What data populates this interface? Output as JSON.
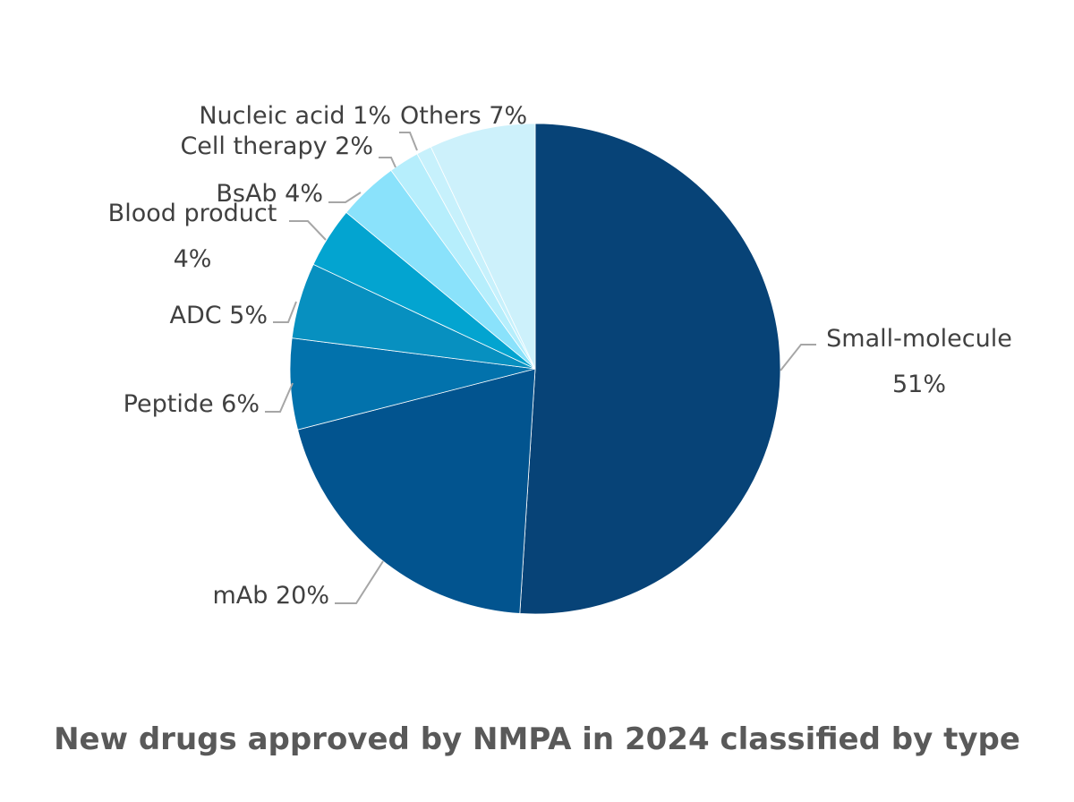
{
  "chart_data": {
    "type": "pie",
    "title": "New drugs approved by NMPA in 2024 classified by type",
    "start_angle_deg": 0,
    "direction": "clockwise",
    "slices": [
      {
        "name": "Small-molecule",
        "value": 51,
        "label_line1": "Small-molecule",
        "label_line2": "51%",
        "color": "#074377"
      },
      {
        "name": "mAb",
        "value": 20,
        "label_line1": "mAb 20%",
        "label_line2": "",
        "color": "#02548f"
      },
      {
        "name": "Peptide",
        "value": 6,
        "label_line1": "Peptide 6%",
        "label_line2": "",
        "color": "#0272ac"
      },
      {
        "name": "ADC",
        "value": 5,
        "label_line1": "ADC 5%",
        "label_line2": "",
        "color": "#0790c0"
      },
      {
        "name": "Blood product",
        "value": 4,
        "label_line1": "Blood product",
        "label_line2": "4%",
        "color": "#03a4d0"
      },
      {
        "name": "BsAb",
        "value": 4,
        "label_line1": "BsAb 4%",
        "label_line2": "",
        "color": "#8ae2fb"
      },
      {
        "name": "Cell therapy",
        "value": 2,
        "label_line1": "Cell therapy 2%",
        "label_line2": "",
        "color": "#b6eefc"
      },
      {
        "name": "Nucleic acid",
        "value": 1,
        "label_line1": "Nucleic acid 1%",
        "label_line2": "",
        "color": "#c7f1fc"
      },
      {
        "name": "Others",
        "value": 7,
        "label_line1": "Others 7%",
        "label_line2": "",
        "color": "#cdf1fb"
      }
    ]
  }
}
